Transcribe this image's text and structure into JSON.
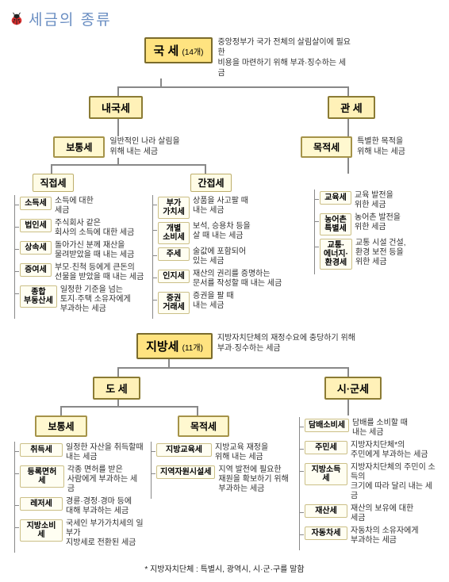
{
  "header": {
    "title": "세금의 종류"
  },
  "colors": {
    "lvl0_bg": "#ffe380",
    "lvl0_border": "#7a6b2c",
    "lvl1_bg": "#fff1b8",
    "lvl1_border": "#8b7b34",
    "lvl2_bg": "#fff8d0",
    "lvl2_border": "#a59349",
    "lvl3_bg": "#fffce6",
    "lvl3_border": "#bdae6b",
    "lvl4_bg": "#fffef2",
    "lvl4_border": "#cbbf87",
    "connector": "#888888",
    "title_color": "#6a8ec2"
  },
  "national": {
    "root": {
      "label": "국 세",
      "count": "(14개)",
      "desc": "중앙정부가 국가 전체의 살림살이에 필요한\n비용을 마련하기 위해 부과·징수하는 세금"
    },
    "domestic": {
      "label": "내국세"
    },
    "customs": {
      "label": "관 세"
    },
    "ordinary": {
      "label": "보통세",
      "desc": "일반적인 나라 살림을\n위해 내는 세금"
    },
    "purpose": {
      "label": "목적세",
      "desc": "특별한 목적을\n위해 내는 세금"
    },
    "direct": {
      "label": "직접세",
      "items": [
        {
          "name": "소득세",
          "desc": "소득에 대한\n세금"
        },
        {
          "name": "법인세",
          "desc": "주식회사 같은\n회사의 소득에 대한 세금"
        },
        {
          "name": "상속세",
          "desc": "돌아가신 분께 재산을\n물려받았을 때 내는 세금"
        },
        {
          "name": "증여세",
          "desc": "부모·친척 등에게 큰돈의\n선물을 받았을 때 내는 세금"
        },
        {
          "name": "종합\n부동산세",
          "desc": "일정한 기준을 넘는\n토지·주택 소유자에게\n부과하는 세금"
        }
      ]
    },
    "indirect": {
      "label": "간접세",
      "items": [
        {
          "name": "부가\n가치세",
          "desc": "상품을 사고팔 때\n내는 세금"
        },
        {
          "name": "개별\n소비세",
          "desc": "보석, 승용차 등을\n살 때 내는 세금"
        },
        {
          "name": "주세",
          "desc": "술값에 포함되어\n있는 세금"
        },
        {
          "name": "인지세",
          "desc": "재산의 권리를 증명하는\n문서를 작성할 때 내는 세금"
        },
        {
          "name": "증권\n거래세",
          "desc": "증권을 팔 때\n내는 세금"
        }
      ]
    },
    "purpose_items": [
      {
        "name": "교육세",
        "desc": "교육 발전을\n위한 세금"
      },
      {
        "name": "농어촌\n특별세",
        "desc": "농어촌 발전을\n위한 세금"
      },
      {
        "name": "교통·\n에너지·\n환경세",
        "desc": "교통 시설 건설,\n환경 보전 등을\n위한 세금"
      }
    ]
  },
  "local": {
    "root": {
      "label": "지방세",
      "count": "(11개)",
      "desc": "지방자치단체의 재정수요에 충당하기 위해\n부과·징수하는 세금"
    },
    "provincial": {
      "label": "도  세"
    },
    "city": {
      "label": "시·군세"
    },
    "ordinary": {
      "label": "보통세",
      "items": [
        {
          "name": "취득세",
          "desc": "일정한 자산을 취득할때\n내는 세금"
        },
        {
          "name": "등록면허세",
          "desc": "각종 면허를 받은\n사람에게 부과하는 세금"
        },
        {
          "name": "레저세",
          "desc": "경륜·경정·경마 등에\n대해 부과하는 세금"
        },
        {
          "name": "지방소비세",
          "desc": "국세인 부가가치세의 일부가\n지방세로 전환된 세금"
        }
      ]
    },
    "purpose": {
      "label": "목적세",
      "items": [
        {
          "name": "지방교육세",
          "desc": "지방교육 재정을\n위해 내는 세금"
        },
        {
          "name": "지역자원시설세",
          "desc": "지역 발전에 필요한\n재원을 확보하기 위해\n부과하는 세금"
        }
      ]
    },
    "city_items": [
      {
        "name": "담배소비세",
        "desc": "담배를 소비할 때\n내는 세금"
      },
      {
        "name": "주민세",
        "desc": "지방자치단체*의\n주민에게 부과하는 세금"
      },
      {
        "name": "지방소득세",
        "desc": "지방자치단체의 주민이 소득의\n크기에 따라 달리 내는 세금"
      },
      {
        "name": "재산세",
        "desc": "재산의 보유에 대한\n세금"
      },
      {
        "name": "자동차세",
        "desc": "자동차의 소유자에게\n부과하는 세금"
      }
    ]
  },
  "footnote": "* 지방자치단체 : 특별시, 광역시, 시·군·구를 말함"
}
